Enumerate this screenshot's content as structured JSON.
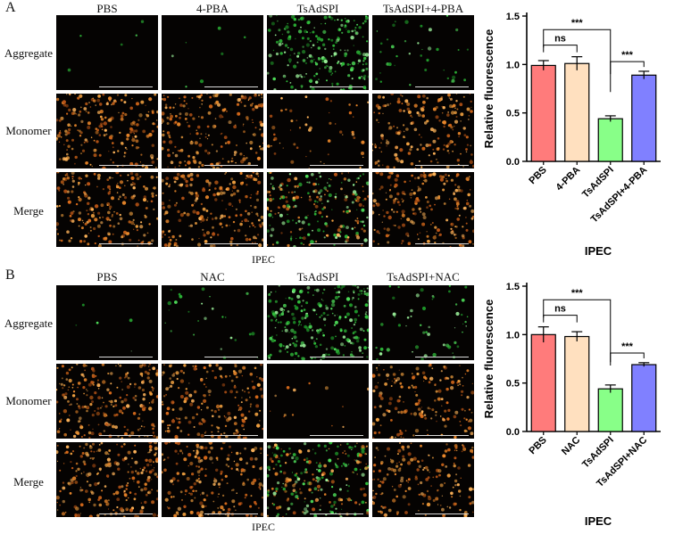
{
  "figure": {
    "panels": [
      {
        "letter": "A",
        "columns": [
          "PBS",
          "4-PBA",
          "TsAdSPI",
          "TsAdSPI+4-PBA"
        ],
        "rows": [
          "Aggregate",
          "Monomer",
          "Merge"
        ],
        "caption": "IPEC",
        "grid_intensity": [
          [
            0.02,
            0.03,
            0.85,
            0.15
          ],
          [
            0.8,
            0.8,
            0.2,
            0.75
          ],
          [
            0.8,
            0.8,
            0.9,
            0.8
          ]
        ]
      },
      {
        "letter": "B",
        "columns": [
          "PBS",
          "NAC",
          "TsAdSPI",
          "TsAdSPI+NAC"
        ],
        "rows": [
          "Aggregate",
          "Monomer",
          "Merge"
        ],
        "caption": "IPEC",
        "grid_intensity": [
          [
            0.02,
            0.1,
            0.95,
            0.2
          ],
          [
            0.85,
            0.75,
            0.05,
            0.65
          ],
          [
            0.85,
            0.75,
            0.95,
            0.7
          ]
        ]
      }
    ],
    "colors": {
      "red": "#ff7b7b",
      "peach": "#ffe0bf",
      "green": "#88ff88",
      "blue": "#8080ff",
      "aggregate_green": "#3fd14a",
      "monomer_orange": "#e8862a"
    }
  },
  "chart_data": [
    {
      "type": "bar",
      "categories": [
        "PBS",
        "4-PBA",
        "TsAdSPI",
        "TsAdSPI+4-PBA"
      ],
      "values": [
        0.99,
        1.01,
        0.44,
        0.89
      ],
      "errors": [
        0.05,
        0.07,
        0.03,
        0.04
      ],
      "bar_colors": [
        "#ff7b7b",
        "#ffe0bf",
        "#88ff88",
        "#8080ff"
      ],
      "ylabel": "Relative fluorescence",
      "xlabel": "IPEC",
      "ylim": [
        0,
        1.5
      ],
      "yticks": [
        "0.0",
        "0.5",
        "1.0",
        "1.5"
      ],
      "annotations": [
        {
          "text": "***",
          "from": 0,
          "to": 2
        },
        {
          "text": "ns",
          "from": 0,
          "to": 1
        },
        {
          "text": "***",
          "from": 2,
          "to": 3
        }
      ]
    },
    {
      "type": "bar",
      "categories": [
        "PBS",
        "NAC",
        "TsAdSPI",
        "TsAdSPI+NAC"
      ],
      "values": [
        1.0,
        0.98,
        0.44,
        0.69
      ],
      "errors": [
        0.08,
        0.05,
        0.04,
        0.02
      ],
      "bar_colors": [
        "#ff7b7b",
        "#ffe0bf",
        "#88ff88",
        "#8080ff"
      ],
      "ylabel": "Relative fluorescence",
      "xlabel": "IPEC",
      "ylim": [
        0,
        1.5
      ],
      "yticks": [
        "0.0",
        "0.5",
        "1.0",
        "1.5"
      ],
      "annotations": [
        {
          "text": "***",
          "from": 0,
          "to": 2
        },
        {
          "text": "ns",
          "from": 0,
          "to": 1
        },
        {
          "text": "***",
          "from": 2,
          "to": 3
        }
      ]
    }
  ]
}
